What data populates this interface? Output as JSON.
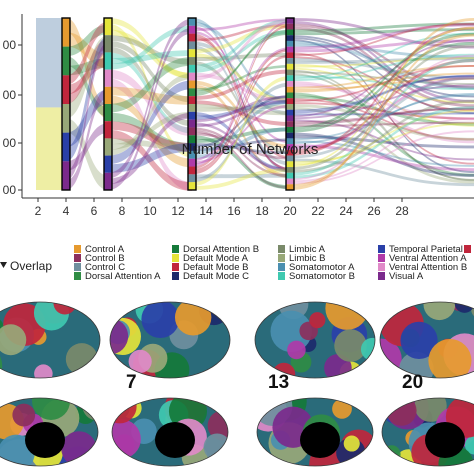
{
  "chart_data": {
    "type": "alluvial",
    "xlabel": "Number of Networks",
    "x_ticks": [
      2,
      4,
      6,
      8,
      10,
      12,
      14,
      16,
      18,
      20,
      22,
      24,
      26,
      28
    ],
    "y_ticks": [
      "00",
      "00",
      "00",
      "00"
    ],
    "xlim": [
      1,
      29
    ],
    "stage_columns": [
      4,
      7,
      13,
      20
    ],
    "first_split": {
      "x": 2,
      "colors": [
        "#b7c9da",
        "#ecec9a"
      ],
      "fractions": [
        0.52,
        0.48
      ]
    },
    "legend_title": "Overlap",
    "legend": [
      {
        "label": "Control A",
        "color": "#e69a2e"
      },
      {
        "label": "Control B",
        "color": "#8c2f5c"
      },
      {
        "label": "Control C",
        "color": "#6f8f9e"
      },
      {
        "label": "Dorsal Attention A",
        "color": "#2f8c44"
      },
      {
        "label": "Dorsal Attention B",
        "color": "#157a3a"
      },
      {
        "label": "Default Mode A",
        "color": "#e4e43a"
      },
      {
        "label": "Default Mode B",
        "color": "#c0263c"
      },
      {
        "label": "Default Mode C",
        "color": "#1c2a6b"
      },
      {
        "label": "Limbic A",
        "color": "#7a8a6a"
      },
      {
        "label": "Limbic B",
        "color": "#98a878"
      },
      {
        "label": "Somatomotor A",
        "color": "#4a8fb0"
      },
      {
        "label": "Somatomotor B",
        "color": "#3fc9b0"
      },
      {
        "label": "Temporal Parietal",
        "color": "#2a40a8"
      },
      {
        "label": "Ventral Attention A",
        "color": "#b03aa8"
      },
      {
        "label": "Ventral Attention B",
        "color": "#e08ac8"
      },
      {
        "label": "Visual A",
        "color": "#7b2a8c"
      },
      {
        "label": "",
        "color": "#c0263c"
      }
    ],
    "brain_labels": [
      "7",
      "13",
      "20"
    ]
  }
}
